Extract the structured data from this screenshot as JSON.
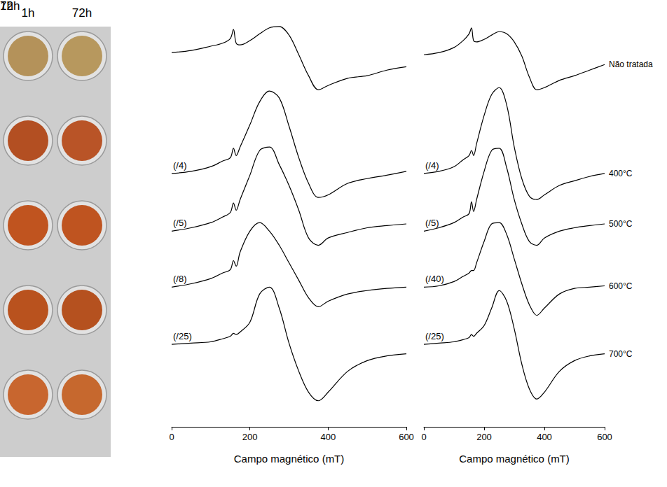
{
  "photos": {
    "columns": [
      "1h",
      "72h"
    ],
    "colors": [
      [
        "#b4925a",
        "#b7985e"
      ],
      [
        "#b34f22",
        "#b95427"
      ],
      [
        "#c0541f",
        "#bf5420"
      ],
      [
        "#b9521e",
        "#b5511f"
      ],
      [
        "#c8662f",
        "#c6682e"
      ]
    ]
  },
  "row_labels": [
    "Não tratada",
    "400°C",
    "500°C",
    "600°C",
    "700°C"
  ],
  "chart_data": [
    {
      "type": "line",
      "title": "1h",
      "x_label": "Campo magnético (mT)",
      "marker": "none",
      "grid": false,
      "tick_labels": "x",
      "x": [
        0,
        50,
        100,
        130,
        150,
        158,
        165,
        175,
        200,
        225,
        250,
        275,
        300,
        325,
        350,
        375,
        400,
        450,
        500,
        550,
        600
      ],
      "xlim": [
        0,
        600
      ],
      "xticks": [
        0,
        200,
        400,
        600
      ],
      "ylim": [
        5,
        100
      ],
      "series": [
        {
          "color": "#000000",
          "values": [
            92.6,
            93.1,
            94.1,
            94.8,
            95.9,
            98.0,
            94.8,
            94.4,
            95.4,
            97.0,
            98.4,
            98.7,
            96.7,
            92.1,
            87.2,
            83.9,
            84.9,
            86.6,
            87.2,
            88.5,
            89.3
          ]
        },
        {
          "color": "#000000",
          "annotation": "(/4)",
          "values": [
            64.3,
            64.8,
            65.9,
            67.2,
            68.0,
            70.2,
            68.5,
            70.5,
            75.7,
            81.1,
            83.6,
            82.0,
            75.4,
            68.0,
            62.0,
            58.7,
            59.3,
            62.0,
            63.1,
            63.9,
            64.8
          ]
        },
        {
          "color": "#000000",
          "annotation": "(/5)",
          "values": [
            50.8,
            51.6,
            52.8,
            54.1,
            55.2,
            57.4,
            55.7,
            58.2,
            63.9,
            69.7,
            70.5,
            66.4,
            61.5,
            55.7,
            49.2,
            47.5,
            49.2,
            50.5,
            51.6,
            52.1,
            52.5
          ]
        },
        {
          "color": "#000000",
          "annotation": "(/8)",
          "values": [
            37.7,
            38.5,
            39.7,
            41.0,
            41.8,
            43.9,
            42.6,
            45.9,
            50.8,
            52.8,
            50.8,
            47.5,
            43.4,
            39.3,
            35.2,
            33.1,
            34.4,
            36.1,
            36.9,
            37.4,
            37.7
          ]
        },
        {
          "color": "#000000",
          "annotation": "(/25)",
          "values": [
            24.3,
            24.6,
            24.9,
            25.6,
            26.2,
            26.9,
            26.6,
            27.2,
            29.5,
            36.1,
            37.7,
            32.8,
            24.6,
            18.0,
            13.1,
            11.1,
            13.1,
            18.0,
            20.5,
            21.6,
            22.1
          ]
        }
      ]
    },
    {
      "type": "line",
      "title": "72h",
      "x_label": "Campo magnético (mT)",
      "marker": "none",
      "grid": false,
      "tick_labels": "x",
      "x": [
        0,
        50,
        100,
        130,
        150,
        158,
        165,
        175,
        200,
        225,
        250,
        275,
        300,
        325,
        350,
        375,
        400,
        450,
        500,
        550,
        600
      ],
      "xlim": [
        0,
        600
      ],
      "xticks": [
        0,
        200,
        400,
        600
      ],
      "ylim": [
        5,
        100
      ],
      "series": [
        {
          "color": "#000000",
          "values": [
            92.1,
            92.6,
            93.8,
            95.4,
            97.0,
            98.4,
            95.4,
            95.1,
            95.7,
            96.7,
            97.5,
            97.0,
            95.1,
            91.8,
            86.9,
            83.9,
            84.4,
            86.1,
            87.2,
            88.5,
            89.8
          ]
        },
        {
          "color": "#000000",
          "annotation": "(/4)",
          "values": [
            64.3,
            64.8,
            65.9,
            67.5,
            68.5,
            69.7,
            68.5,
            71.3,
            77.9,
            82.8,
            84.4,
            80.3,
            70.5,
            63.1,
            59.0,
            58.2,
            59.3,
            61.5,
            62.6,
            63.6,
            64.3
          ]
        },
        {
          "color": "#000000",
          "annotation": "(/5)",
          "values": [
            50.8,
            51.6,
            52.8,
            54.1,
            54.9,
            57.7,
            55.4,
            58.2,
            64.8,
            69.7,
            70.2,
            65.6,
            58.2,
            52.5,
            48.4,
            47.5,
            49.2,
            50.8,
            51.6,
            52.1,
            52.5
          ]
        },
        {
          "color": "#000000",
          "annotation": "(/40)",
          "values": [
            37.7,
            38.0,
            39.0,
            40.2,
            41.0,
            41.6,
            41.6,
            43.4,
            48.4,
            52.5,
            52.8,
            50.0,
            44.3,
            38.5,
            33.6,
            31.1,
            32.8,
            36.1,
            37.4,
            37.7,
            38.0
          ]
        },
        {
          "color": "#000000",
          "annotation": "(/25)",
          "values": [
            24.3,
            24.6,
            24.9,
            25.4,
            25.9,
            26.6,
            26.2,
            26.9,
            28.7,
            32.8,
            36.9,
            34.4,
            27.9,
            19.7,
            13.9,
            11.5,
            13.1,
            18.0,
            20.5,
            21.6,
            22.1
          ]
        }
      ]
    }
  ]
}
